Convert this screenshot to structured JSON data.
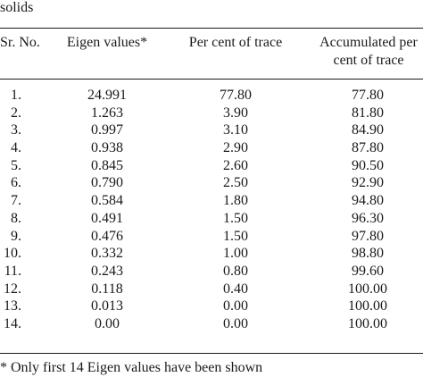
{
  "caption": "solids",
  "headers": {
    "sr_no": "Sr. No.",
    "eigen": "Eigen values*",
    "trace": "Per cent of trace",
    "accum_line1": "Accumulated per",
    "accum_line2": "cent of trace"
  },
  "rows": [
    {
      "sr": "1.",
      "eigen": "24.991",
      "trace": "77.80",
      "accum": "77.80"
    },
    {
      "sr": "2.",
      "eigen": "1.263",
      "trace": "3.90",
      "accum": "81.80"
    },
    {
      "sr": "3.",
      "eigen": "0.997",
      "trace": "3.10",
      "accum": "84.90"
    },
    {
      "sr": "4.",
      "eigen": "0.938",
      "trace": "2.90",
      "accum": "87.80"
    },
    {
      "sr": "5.",
      "eigen": "0.845",
      "trace": "2.60",
      "accum": "90.50"
    },
    {
      "sr": "6.",
      "eigen": "0.790",
      "trace": "2.50",
      "accum": "92.90"
    },
    {
      "sr": "7.",
      "eigen": "0.584",
      "trace": "1.80",
      "accum": "94.80"
    },
    {
      "sr": "8.",
      "eigen": "0.491",
      "trace": "1.50",
      "accum": "96.30"
    },
    {
      "sr": "9.",
      "eigen": "0.476",
      "trace": "1.50",
      "accum": "97.80"
    },
    {
      "sr": "10.",
      "eigen": "0.332",
      "trace": "1.00",
      "accum": "98.80"
    },
    {
      "sr": "11.",
      "eigen": "0.243",
      "trace": "0.80",
      "accum": "99.60"
    },
    {
      "sr": "12.",
      "eigen": "0.118",
      "trace": "0.40",
      "accum": "100.00"
    },
    {
      "sr": "13.",
      "eigen": "0.013",
      "trace": "0.00",
      "accum": "100.00"
    },
    {
      "sr": "14.",
      "eigen": "0.00",
      "trace": "0.00",
      "accum": "100.00"
    }
  ],
  "footnote": "* Only first 14 Eigen values have been shown"
}
